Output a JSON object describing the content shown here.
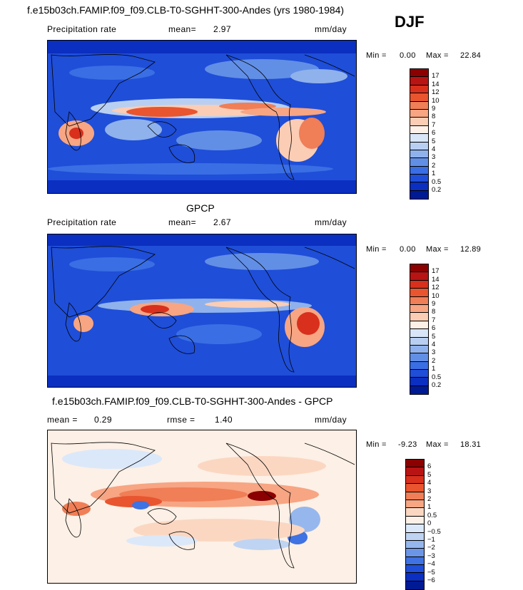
{
  "page_title": "f.e15b03ch.FAMIP.f09_f09.CLB-T0-SGHHT-300-Andes (yrs 1980-1984)",
  "season": "DJF",
  "panels": [
    {
      "subtitle": "",
      "left_label": "Precipitation rate",
      "mean_label": "mean=",
      "mean_value": "2.97",
      "units": "mm/day",
      "min_label": "Min =",
      "min_value": "0.00",
      "max_label": "Max =",
      "max_value": "22.84",
      "colorbar": {
        "levels": [
          "17",
          "14",
          "12",
          "10",
          "9",
          "8",
          "7",
          "6",
          "5",
          "4",
          "3",
          "2",
          "1",
          "0.5",
          "0.2"
        ],
        "colors": [
          "#8b0000",
          "#b81414",
          "#d8301c",
          "#e8552f",
          "#f07e56",
          "#f7a583",
          "#fbcdb5",
          "#fdf0e6",
          "#d8e6f8",
          "#b8cff2",
          "#8fb2ec",
          "#628fe6",
          "#3a6ee4",
          "#1f4ed8",
          "#0b2fc0",
          "#001a94"
        ]
      }
    },
    {
      "subtitle": "GPCP",
      "left_label": "Precipitation rate",
      "mean_label": "mean=",
      "mean_value": "2.67",
      "units": "mm/day",
      "min_label": "Min =",
      "min_value": "0.00",
      "max_label": "Max =",
      "max_value": "12.89",
      "colorbar": {
        "levels": [
          "17",
          "14",
          "12",
          "10",
          "9",
          "8",
          "7",
          "6",
          "5",
          "4",
          "3",
          "2",
          "1",
          "0.5",
          "0.2"
        ],
        "colors": [
          "#8b0000",
          "#b81414",
          "#d8301c",
          "#e8552f",
          "#f07e56",
          "#f7a583",
          "#fbcdb5",
          "#fdf0e6",
          "#d8e6f8",
          "#b8cff2",
          "#8fb2ec",
          "#628fe6",
          "#3a6ee4",
          "#1f4ed8",
          "#0b2fc0",
          "#001a94"
        ]
      }
    },
    {
      "subtitle": "f.e15b03ch.FAMIP.f09_f09.CLB-T0-SGHHT-300-Andes - GPCP",
      "mean_label": "mean =",
      "mean_value": "0.29",
      "rmse_label": "rmse =",
      "rmse_value": "1.40",
      "units": "mm/day",
      "min_label": "Min =",
      "min_value": "-9.23",
      "max_label": "Max =",
      "max_value": "18.31",
      "colorbar": {
        "levels": [
          "6",
          "5",
          "4",
          "3",
          "2",
          "1",
          "0.5",
          "0",
          "−0.5",
          "−1",
          "−2",
          "−3",
          "−4",
          "−5",
          "−6"
        ],
        "colors": [
          "#8b0000",
          "#b81414",
          "#d8301c",
          "#e8552f",
          "#f07e56",
          "#f7a583",
          "#fbd7c2",
          "#fdf0e6",
          "#dbe8f9",
          "#bfd4f3",
          "#96b7ed",
          "#6b95e6",
          "#3f72e2",
          "#1f4ed8",
          "#0b2fc0",
          "#001a94"
        ]
      }
    }
  ]
}
